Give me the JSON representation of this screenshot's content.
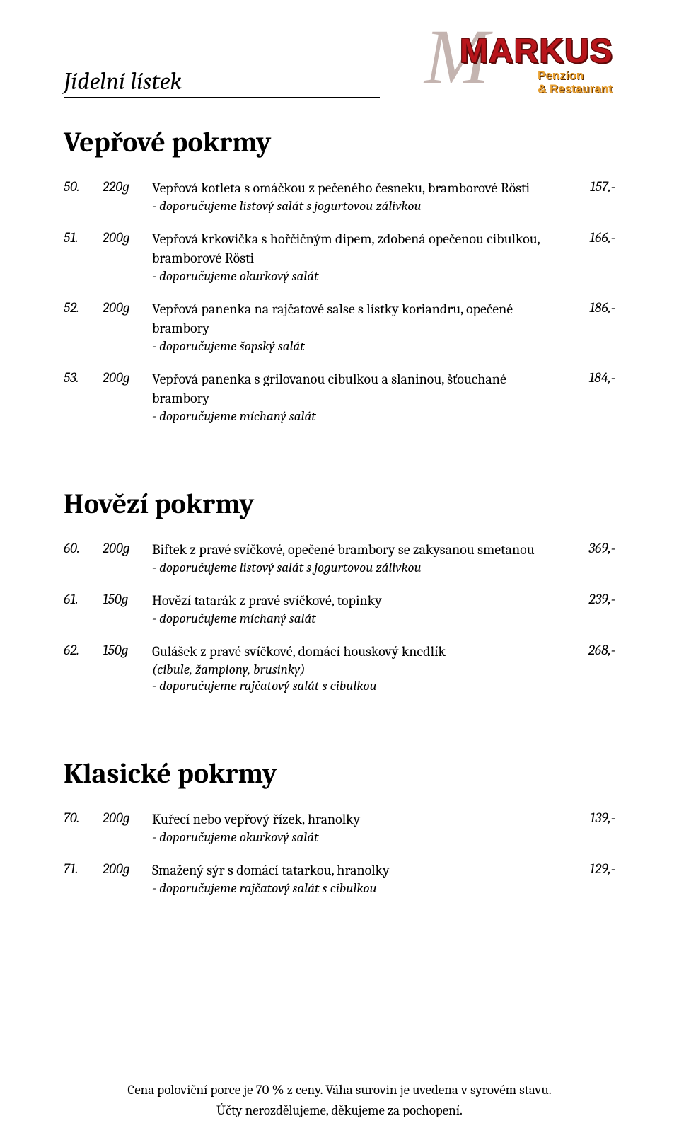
{
  "header": {
    "page_title": "Jídelní lístek",
    "logo_main": "MARKUS",
    "logo_sub1": "Penzion",
    "logo_sub2": "& Restaurant"
  },
  "sections": [
    {
      "title": "Vepřové pokrmy",
      "items": [
        {
          "num": "50.",
          "weight": "220g",
          "main": "Vepřová kotleta s omáčkou z pečeného česneku, bramborové Rösti",
          "notes": [
            "- doporučujeme listový salát s jogurtovou zálivkou"
          ],
          "price": "157,-"
        },
        {
          "num": "51.",
          "weight": "200g",
          "main": "Vepřová krkovička s hořčičným dipem, zdobená opečenou cibulkou, bramborové Rösti",
          "notes": [
            "- doporučujeme okurkový salát"
          ],
          "price": "166,-"
        },
        {
          "num": "52.",
          "weight": "200g",
          "main": "Vepřová panenka na rajčatové salse s lístky koriandru, opečené brambory",
          "notes": [
            "- doporučujeme šopský salát"
          ],
          "price": "186,-"
        },
        {
          "num": "53.",
          "weight": "200g",
          "main": "Vepřová panenka s grilovanou cibulkou a slaninou, šťouchané brambory",
          "notes": [
            "- doporučujeme míchaný salát"
          ],
          "price": "184,-"
        }
      ]
    },
    {
      "title": "Hovězí pokrmy",
      "items": [
        {
          "num": "60.",
          "weight": "200g",
          "main": "Biftek z pravé svíčkové, opečené brambory se zakysanou smetanou",
          "notes": [
            "- doporučujeme listový salát s jogurtovou zálivkou"
          ],
          "price": "369,-"
        },
        {
          "num": "61.",
          "weight": "150g",
          "main": "Hovězí tatarák z pravé svíčkové, topinky",
          "notes": [
            "- doporučujeme míchaný salát"
          ],
          "price": "239,-"
        },
        {
          "num": "62.",
          "weight": "150g",
          "main": "Gulášek z pravé svíčkové, domácí houskový knedlík",
          "notes": [
            "(cibule, žampiony, brusinky)",
            "- doporučujeme rajčatový salát s cibulkou"
          ],
          "price": "268,-"
        }
      ]
    },
    {
      "title": "Klasické pokrmy",
      "items": [
        {
          "num": "70.",
          "weight": "200g",
          "main": "Kuřecí nebo vepřový řízek, hranolky",
          "notes": [
            "- doporučujeme okurkový salát"
          ],
          "price": "139,-"
        },
        {
          "num": "71.",
          "weight": "200g",
          "main": "Smažený sýr s domácí tatarkou, hranolky",
          "notes": [
            "- doporučujeme rajčatový salát s cibulkou"
          ],
          "price": "129,-"
        }
      ]
    }
  ],
  "footer": {
    "line1": "Cena poloviční porce je 70 % z ceny. Váha surovin je uvedena v syrovém stavu.",
    "line2": "Účty nerozdělujeme, děkujeme za pochopení."
  },
  "style": {
    "page_bg": "#ffffff",
    "text_color": "#000000",
    "logo_red": "#b8151b",
    "logo_orange": "#e8a030",
    "title_fontsize": 40,
    "body_fontsize": 20
  }
}
